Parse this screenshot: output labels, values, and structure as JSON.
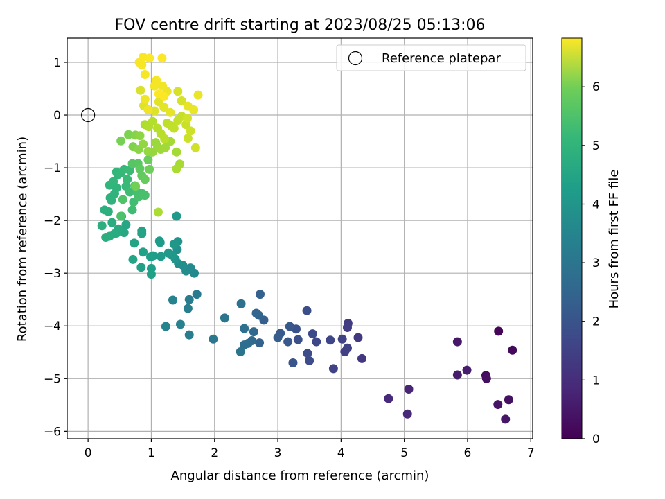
{
  "chart_data": {
    "type": "scatter",
    "title": "FOV centre drift starting at 2023/08/25 05:13:06",
    "xlabel": "Angular distance from reference (arcmin)",
    "ylabel": "Rotation from reference (arcmin)",
    "xlim": [
      -0.33,
      7.03
    ],
    "ylim": [
      -6.14,
      1.46
    ],
    "xticks": [
      0,
      1,
      2,
      3,
      4,
      5,
      6,
      7
    ],
    "yticks": [
      1,
      0,
      -1,
      -2,
      -3,
      -4,
      -5,
      -6
    ],
    "grid": true,
    "legend": {
      "position": "top-right",
      "entries": [
        {
          "label": "Reference platepar",
          "marker": "open-circle"
        }
      ]
    },
    "reference_point": {
      "x": 0,
      "y": 0
    },
    "colorbar": {
      "label": "Hours from first FF file",
      "min": 0,
      "max": 6.83,
      "ticks": [
        0,
        1,
        2,
        3,
        4,
        5,
        6
      ],
      "colormap": "viridis"
    },
    "points": [
      {
        "x": 6.49,
        "y": -4.1,
        "h": 0.1
      },
      {
        "x": 6.71,
        "y": -4.46,
        "h": 0.15
      },
      {
        "x": 6.29,
        "y": -4.94,
        "h": 0.2
      },
      {
        "x": 6.3,
        "y": -5.0,
        "h": 0.25
      },
      {
        "x": 6.65,
        "y": -5.4,
        "h": 0.3
      },
      {
        "x": 6.48,
        "y": -5.49,
        "h": 0.35
      },
      {
        "x": 6.6,
        "y": -5.77,
        "h": 0.4
      },
      {
        "x": 5.84,
        "y": -4.3,
        "h": 0.45
      },
      {
        "x": 5.84,
        "y": -4.93,
        "h": 0.5
      },
      {
        "x": 5.99,
        "y": -4.84,
        "h": 0.55
      },
      {
        "x": 5.07,
        "y": -5.2,
        "h": 0.7
      },
      {
        "x": 5.05,
        "y": -5.67,
        "h": 0.75
      },
      {
        "x": 4.75,
        "y": -5.38,
        "h": 0.8
      },
      {
        "x": 4.33,
        "y": -4.62,
        "h": 1.1
      },
      {
        "x": 4.27,
        "y": -4.22,
        "h": 1.15
      },
      {
        "x": 4.11,
        "y": -3.95,
        "h": 1.2
      },
      {
        "x": 4.1,
        "y": -4.03,
        "h": 1.25
      },
      {
        "x": 4.1,
        "y": -4.42,
        "h": 1.3
      },
      {
        "x": 4.06,
        "y": -4.49,
        "h": 1.32
      },
      {
        "x": 4.02,
        "y": -4.25,
        "h": 1.35
      },
      {
        "x": 3.88,
        "y": -4.81,
        "h": 1.4
      },
      {
        "x": 3.83,
        "y": -4.27,
        "h": 1.45
      },
      {
        "x": 3.61,
        "y": -4.3,
        "h": 1.5
      },
      {
        "x": 3.55,
        "y": -4.15,
        "h": 1.55
      },
      {
        "x": 3.5,
        "y": -4.66,
        "h": 1.6
      },
      {
        "x": 3.47,
        "y": -4.52,
        "h": 1.62
      },
      {
        "x": 3.46,
        "y": -3.71,
        "h": 1.65
      },
      {
        "x": 3.32,
        "y": -4.26,
        "h": 1.7
      },
      {
        "x": 3.29,
        "y": -4.06,
        "h": 1.75
      },
      {
        "x": 3.24,
        "y": -4.7,
        "h": 1.8
      },
      {
        "x": 3.19,
        "y": -4.01,
        "h": 1.85
      },
      {
        "x": 3.16,
        "y": -4.3,
        "h": 1.9
      },
      {
        "x": 3.04,
        "y": -4.14,
        "h": 1.95
      },
      {
        "x": 3.0,
        "y": -4.22,
        "h": 2.0
      },
      {
        "x": 2.78,
        "y": -3.89,
        "h": 2.05
      },
      {
        "x": 2.72,
        "y": -3.4,
        "h": 2.1
      },
      {
        "x": 2.71,
        "y": -4.32,
        "h": 2.15
      },
      {
        "x": 2.7,
        "y": -3.8,
        "h": 2.2
      },
      {
        "x": 2.66,
        "y": -3.76,
        "h": 2.25
      },
      {
        "x": 2.62,
        "y": -4.11,
        "h": 2.3
      },
      {
        "x": 2.59,
        "y": -4.28,
        "h": 2.35
      },
      {
        "x": 2.53,
        "y": -4.33,
        "h": 2.4
      },
      {
        "x": 2.47,
        "y": -4.36,
        "h": 2.45
      },
      {
        "x": 2.47,
        "y": -4.05,
        "h": 2.5
      },
      {
        "x": 2.42,
        "y": -3.58,
        "h": 2.55
      },
      {
        "x": 2.41,
        "y": -4.49,
        "h": 2.6
      },
      {
        "x": 2.16,
        "y": -3.85,
        "h": 2.65
      },
      {
        "x": 1.98,
        "y": -4.25,
        "h": 2.7
      },
      {
        "x": 1.72,
        "y": -3.4,
        "h": 2.8
      },
      {
        "x": 1.6,
        "y": -3.5,
        "h": 2.85
      },
      {
        "x": 1.6,
        "y": -4.17,
        "h": 2.9
      },
      {
        "x": 1.58,
        "y": -3.67,
        "h": 2.95
      },
      {
        "x": 1.46,
        "y": -3.97,
        "h": 3.0
      },
      {
        "x": 1.34,
        "y": -3.51,
        "h": 3.05
      },
      {
        "x": 1.23,
        "y": -4.01,
        "h": 3.1
      },
      {
        "x": 1.68,
        "y": -3.0,
        "h": 3.2
      },
      {
        "x": 1.62,
        "y": -2.9,
        "h": 3.25
      },
      {
        "x": 1.55,
        "y": -2.96,
        "h": 3.3
      },
      {
        "x": 1.5,
        "y": -2.85,
        "h": 3.35
      },
      {
        "x": 1.43,
        "y": -2.82,
        "h": 3.4
      },
      {
        "x": 1.41,
        "y": -2.55,
        "h": 3.45
      },
      {
        "x": 1.42,
        "y": -2.4,
        "h": 3.5
      },
      {
        "x": 1.38,
        "y": -2.73,
        "h": 3.55
      },
      {
        "x": 1.36,
        "y": -2.45,
        "h": 3.6
      },
      {
        "x": 1.33,
        "y": -2.66,
        "h": 3.62
      },
      {
        "x": 1.27,
        "y": -2.62,
        "h": 3.65
      },
      {
        "x": 1.4,
        "y": -1.92,
        "h": 3.68
      },
      {
        "x": 1.15,
        "y": -2.68,
        "h": 3.7
      },
      {
        "x": 1.14,
        "y": -2.42,
        "h": 3.72
      },
      {
        "x": 1.13,
        "y": -2.39,
        "h": 3.75
      },
      {
        "x": 1.03,
        "y": -2.67,
        "h": 3.78
      },
      {
        "x": 0.99,
        "y": -2.69,
        "h": 3.8
      },
      {
        "x": 1.0,
        "y": -2.91,
        "h": 3.82
      },
      {
        "x": 1.0,
        "y": -3.02,
        "h": 3.85
      },
      {
        "x": 0.87,
        "y": -2.6,
        "h": 3.88
      },
      {
        "x": 0.84,
        "y": -2.89,
        "h": 3.9
      },
      {
        "x": 0.85,
        "y": -2.2,
        "h": 3.92
      },
      {
        "x": 0.85,
        "y": -2.25,
        "h": 3.95
      },
      {
        "x": 0.73,
        "y": -2.43,
        "h": 3.98
      },
      {
        "x": 0.71,
        "y": -2.74,
        "h": 4.0
      },
      {
        "x": 0.6,
        "y": -2.08,
        "h": 4.05
      },
      {
        "x": 0.57,
        "y": -2.23,
        "h": 4.08
      },
      {
        "x": 0.53,
        "y": -1.92,
        "h": 4.1
      },
      {
        "x": 0.48,
        "y": -2.16,
        "h": 4.12
      },
      {
        "x": 0.45,
        "y": -2.24,
        "h": 4.15
      },
      {
        "x": 0.42,
        "y": -2.25,
        "h": 4.18
      },
      {
        "x": 0.38,
        "y": -2.04,
        "h": 4.2
      },
      {
        "x": 0.34,
        "y": -2.3,
        "h": 4.22
      },
      {
        "x": 0.28,
        "y": -2.32,
        "h": 4.25
      },
      {
        "x": 0.22,
        "y": -2.1,
        "h": 4.28
      },
      {
        "x": 0.26,
        "y": -1.8,
        "h": 4.3
      },
      {
        "x": 0.32,
        "y": -1.83,
        "h": 4.32
      },
      {
        "x": 0.35,
        "y": -1.57,
        "h": 4.35
      },
      {
        "x": 0.37,
        "y": -1.62,
        "h": 4.38
      },
      {
        "x": 0.42,
        "y": -1.49,
        "h": 4.4
      },
      {
        "x": 0.45,
        "y": -1.38,
        "h": 4.42
      },
      {
        "x": 0.34,
        "y": -1.33,
        "h": 4.45
      },
      {
        "x": 0.4,
        "y": -1.26,
        "h": 4.48
      },
      {
        "x": 0.47,
        "y": -1.13,
        "h": 4.5
      },
      {
        "x": 0.45,
        "y": -1.08,
        "h": 4.52
      },
      {
        "x": 0.52,
        "y": -1.1,
        "h": 4.55
      },
      {
        "x": 0.57,
        "y": -1.03,
        "h": 4.58
      },
      {
        "x": 0.6,
        "y": -1.35,
        "h": 4.6
      },
      {
        "x": 0.62,
        "y": -1.22,
        "h": 4.62
      },
      {
        "x": 0.66,
        "y": -1.05,
        "h": 4.65
      },
      {
        "x": 0.66,
        "y": -1.46,
        "h": 4.68
      },
      {
        "x": 0.7,
        "y": -1.8,
        "h": 4.7
      },
      {
        "x": 0.72,
        "y": -1.65,
        "h": 4.72
      },
      {
        "x": 0.74,
        "y": -1.34,
        "h": 4.75
      },
      {
        "x": 0.78,
        "y": -1.46,
        "h": 4.78
      },
      {
        "x": 0.8,
        "y": -1.55,
        "h": 4.8
      },
      {
        "x": 0.86,
        "y": -1.49,
        "h": 4.82
      },
      {
        "x": 0.9,
        "y": -1.52,
        "h": 4.85
      },
      {
        "x": 0.52,
        "y": -1.92,
        "h": 4.88
      },
      {
        "x": 0.55,
        "y": -1.6,
        "h": 4.9
      },
      {
        "x": 0.7,
        "y": -0.92,
        "h": 5.0
      },
      {
        "x": 0.79,
        "y": -0.92,
        "h": 5.05
      },
      {
        "x": 0.82,
        "y": -1.02,
        "h": 5.1
      },
      {
        "x": 0.85,
        "y": -1.15,
        "h": 5.15
      },
      {
        "x": 0.9,
        "y": -1.22,
        "h": 5.2
      },
      {
        "x": 0.95,
        "y": -0.85,
        "h": 5.25
      },
      {
        "x": 0.97,
        "y": -1.03,
        "h": 5.3
      },
      {
        "x": 0.75,
        "y": -1.35,
        "h": 5.35
      },
      {
        "x": 0.52,
        "y": -0.49,
        "h": 5.4
      },
      {
        "x": 0.64,
        "y": -0.37,
        "h": 5.45
      },
      {
        "x": 0.71,
        "y": -0.6,
        "h": 5.5
      },
      {
        "x": 0.75,
        "y": -0.38,
        "h": 5.55
      },
      {
        "x": 0.8,
        "y": -0.65,
        "h": 5.6
      },
      {
        "x": 0.82,
        "y": -0.39,
        "h": 5.65
      },
      {
        "x": 0.87,
        "y": -0.55,
        "h": 5.7
      },
      {
        "x": 0.95,
        "y": -0.69,
        "h": 5.72
      },
      {
        "x": 1.02,
        "y": -0.7,
        "h": 5.75
      },
      {
        "x": 1.07,
        "y": -0.52,
        "h": 5.78
      },
      {
        "x": 1.1,
        "y": -0.6,
        "h": 5.8
      },
      {
        "x": 1.15,
        "y": -0.65,
        "h": 5.82
      },
      {
        "x": 1.22,
        "y": -0.62,
        "h": 5.85
      },
      {
        "x": 1.3,
        "y": -0.5,
        "h": 5.88
      },
      {
        "x": 1.4,
        "y": -0.7,
        "h": 5.9
      },
      {
        "x": 1.45,
        "y": -0.93,
        "h": 5.92
      },
      {
        "x": 1.4,
        "y": -1.02,
        "h": 5.94
      },
      {
        "x": 1.11,
        "y": -1.84,
        "h": 5.96
      },
      {
        "x": 0.9,
        "y": -0.18,
        "h": 6.0
      },
      {
        "x": 0.96,
        "y": -0.22,
        "h": 6.02
      },
      {
        "x": 1.02,
        "y": -0.12,
        "h": 6.05
      },
      {
        "x": 1.1,
        "y": -0.25,
        "h": 6.08
      },
      {
        "x": 1.15,
        "y": -0.35,
        "h": 6.1
      },
      {
        "x": 1.21,
        "y": -0.45,
        "h": 6.12
      },
      {
        "x": 1.25,
        "y": -0.15,
        "h": 6.15
      },
      {
        "x": 1.31,
        "y": -0.2,
        "h": 6.18
      },
      {
        "x": 1.36,
        "y": -0.25,
        "h": 6.2
      },
      {
        "x": 1.42,
        "y": -0.1,
        "h": 6.22
      },
      {
        "x": 1.48,
        "y": -0.02,
        "h": 6.25
      },
      {
        "x": 1.55,
        "y": -0.18,
        "h": 6.28
      },
      {
        "x": 1.58,
        "y": -0.44,
        "h": 6.3
      },
      {
        "x": 1.62,
        "y": -0.3,
        "h": 6.32
      },
      {
        "x": 1.7,
        "y": -0.62,
        "h": 6.35
      },
      {
        "x": 1.57,
        "y": -0.06,
        "h": 6.38
      },
      {
        "x": 1.48,
        "y": 0.27,
        "h": 6.4
      },
      {
        "x": 1.42,
        "y": 0.45,
        "h": 6.42
      },
      {
        "x": 0.83,
        "y": 0.47,
        "h": 6.45
      },
      {
        "x": 0.88,
        "y": 0.18,
        "h": 6.48
      },
      {
        "x": 1.05,
        "y": 0.08,
        "h": 6.5
      },
      {
        "x": 1.12,
        "y": 0.25,
        "h": 6.52
      },
      {
        "x": 1.2,
        "y": 0.15,
        "h": 6.55
      },
      {
        "x": 1.3,
        "y": 0.05,
        "h": 6.58
      },
      {
        "x": 1.58,
        "y": 0.17,
        "h": 6.6
      },
      {
        "x": 1.67,
        "y": 0.1,
        "h": 6.62
      },
      {
        "x": 1.74,
        "y": 0.38,
        "h": 6.64
      },
      {
        "x": 1.25,
        "y": 0.45,
        "h": 6.65
      },
      {
        "x": 0.9,
        "y": 0.3,
        "h": 6.66
      },
      {
        "x": 0.95,
        "y": 0.1,
        "h": 6.68
      },
      {
        "x": 1.18,
        "y": 0.55,
        "h": 6.7
      },
      {
        "x": 1.05,
        "y": 0.55,
        "h": 6.72
      },
      {
        "x": 1.08,
        "y": 0.66,
        "h": 6.74
      },
      {
        "x": 0.9,
        "y": 0.77,
        "h": 6.75
      },
      {
        "x": 0.85,
        "y": 0.95,
        "h": 6.76
      },
      {
        "x": 0.81,
        "y": 1.0,
        "h": 6.78
      },
      {
        "x": 0.87,
        "y": 1.1,
        "h": 6.79
      },
      {
        "x": 0.97,
        "y": 1.08,
        "h": 6.8
      },
      {
        "x": 1.17,
        "y": 1.08,
        "h": 6.81
      },
      {
        "x": 1.12,
        "y": 0.4,
        "h": 6.82
      },
      {
        "x": 1.2,
        "y": 0.35,
        "h": 6.83
      }
    ]
  }
}
